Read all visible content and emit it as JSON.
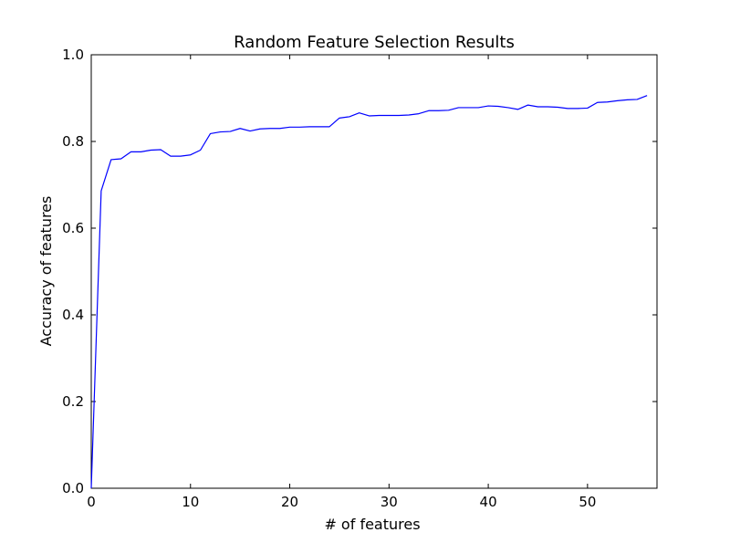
{
  "chart_data": {
    "type": "line",
    "title": "Random Feature Selection Results",
    "xlabel": "# of features",
    "ylabel": "Accuracy of features",
    "xlim": [
      0,
      57
    ],
    "ylim": [
      0.0,
      1.0
    ],
    "x_ticks": [
      0,
      10,
      20,
      30,
      40,
      50
    ],
    "y_ticks": [
      0.0,
      0.2,
      0.4,
      0.6,
      0.8,
      1.0
    ],
    "x_tick_labels": [
      "0",
      "10",
      "20",
      "30",
      "40",
      "50"
    ],
    "y_tick_labels": [
      "0.0",
      "0.2",
      "0.4",
      "0.6",
      "0.8",
      "1.0"
    ],
    "grid": false,
    "line_color": "#0000ff",
    "series": [
      {
        "x": [
          0,
          1,
          2,
          3,
          4,
          5,
          6,
          7,
          8,
          9,
          10,
          11,
          12,
          13,
          14,
          15,
          16,
          17,
          18,
          19,
          20,
          21,
          22,
          23,
          24,
          25,
          26,
          27,
          28,
          29,
          30,
          31,
          32,
          33,
          34,
          35,
          36,
          37,
          38,
          39,
          40,
          41,
          42,
          43,
          44,
          45,
          46,
          47,
          48,
          49,
          50,
          51,
          52,
          53,
          54,
          55,
          56
        ],
        "values": [
          0.0,
          0.686,
          0.758,
          0.76,
          0.776,
          0.776,
          0.78,
          0.781,
          0.766,
          0.766,
          0.769,
          0.78,
          0.818,
          0.822,
          0.823,
          0.83,
          0.824,
          0.829,
          0.83,
          0.83,
          0.833,
          0.833,
          0.834,
          0.834,
          0.834,
          0.854,
          0.857,
          0.866,
          0.859,
          0.86,
          0.86,
          0.86,
          0.861,
          0.864,
          0.871,
          0.871,
          0.872,
          0.878,
          0.878,
          0.878,
          0.882,
          0.881,
          0.878,
          0.874,
          0.884,
          0.88,
          0.88,
          0.879,
          0.876,
          0.876,
          0.877,
          0.89,
          0.891,
          0.894,
          0.896,
          0.897,
          0.906
        ]
      }
    ]
  }
}
